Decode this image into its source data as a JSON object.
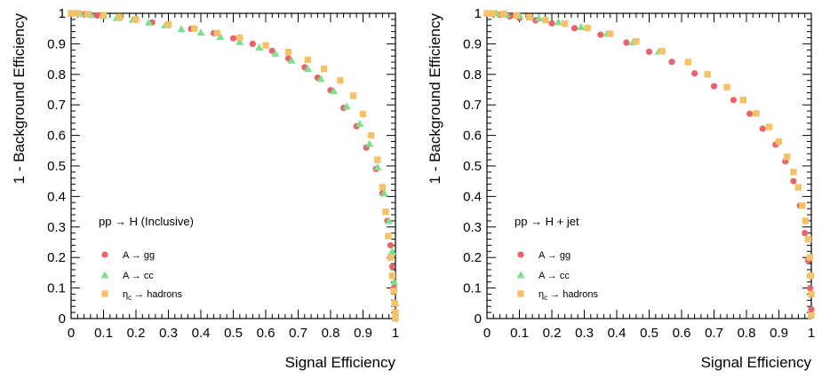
{
  "colors": {
    "gg": "#e8636b",
    "cc": "#7ee08e",
    "hadrons": "#f5c26a"
  },
  "chart_data": [
    {
      "type": "scatter",
      "title": "",
      "annotation": "pp → H (Inclusive)",
      "xlabel": "Signal Efficiency",
      "ylabel": "1 - Background Efficiency",
      "xlim": [
        0,
        1
      ],
      "ylim": [
        0,
        1
      ],
      "xticks": [
        "0",
        "0.1",
        "0.2",
        "0.3",
        "0.4",
        "0.5",
        "0.6",
        "0.7",
        "0.8",
        "0.9",
        "1"
      ],
      "yticks": [
        "0",
        "0.1",
        "0.2",
        "0.3",
        "0.4",
        "0.5",
        "0.6",
        "0.7",
        "0.8",
        "0.9",
        "1"
      ],
      "legend_position": "bottom-left",
      "series": [
        {
          "label_prefix": "A → ",
          "label_suffix": "gg",
          "marker": "circle",
          "color": "#e8636b",
          "x": [
            0.0,
            0.02,
            0.04,
            0.06,
            0.08,
            0.1,
            0.15,
            0.2,
            0.25,
            0.3,
            0.37,
            0.44,
            0.5,
            0.56,
            0.62,
            0.67,
            0.72,
            0.76,
            0.8,
            0.84,
            0.88,
            0.91,
            0.94,
            0.96,
            0.975,
            0.985,
            0.99,
            0.995,
            0.998,
            1.0
          ],
          "y": [
            1.0,
            0.999,
            0.997,
            0.995,
            0.993,
            0.99,
            0.985,
            0.978,
            0.97,
            0.961,
            0.949,
            0.935,
            0.918,
            0.9,
            0.877,
            0.852,
            0.823,
            0.789,
            0.748,
            0.69,
            0.63,
            0.56,
            0.49,
            0.41,
            0.32,
            0.24,
            0.17,
            0.1,
            0.05,
            0.02
          ]
        },
        {
          "label_prefix": "A → ",
          "label_suffix": "cc",
          "marker": "triangle",
          "color": "#7ee08e",
          "x": [
            0.0,
            0.03,
            0.06,
            0.1,
            0.14,
            0.19,
            0.24,
            0.29,
            0.34,
            0.4,
            0.46,
            0.52,
            0.58,
            0.63,
            0.68,
            0.73,
            0.77,
            0.81,
            0.85,
            0.89,
            0.92,
            0.945,
            0.965,
            0.98,
            0.99,
            0.996,
            1.0
          ],
          "y": [
            1.0,
            0.998,
            0.995,
            0.991,
            0.985,
            0.979,
            0.97,
            0.961,
            0.948,
            0.937,
            0.923,
            0.906,
            0.888,
            0.868,
            0.845,
            0.818,
            0.785,
            0.745,
            0.695,
            0.638,
            0.572,
            0.495,
            0.41,
            0.32,
            0.22,
            0.12,
            0.05
          ]
        },
        {
          "label_prefix": "η",
          "label_sub": "c",
          "label_suffix": " → hadrons",
          "marker": "square",
          "color": "#f5c26a",
          "x": [
            0.0,
            0.02,
            0.05,
            0.1,
            0.15,
            0.2,
            0.3,
            0.38,
            0.45,
            0.52,
            0.6,
            0.67,
            0.73,
            0.78,
            0.83,
            0.87,
            0.9,
            0.925,
            0.945,
            0.96,
            0.97,
            0.978,
            0.985,
            0.99,
            0.995,
            0.998,
            1.0,
            1.0
          ],
          "y": [
            1.0,
            1.0,
            0.998,
            0.994,
            0.988,
            0.98,
            0.964,
            0.95,
            0.935,
            0.92,
            0.895,
            0.873,
            0.848,
            0.818,
            0.78,
            0.73,
            0.67,
            0.6,
            0.52,
            0.43,
            0.35,
            0.27,
            0.2,
            0.14,
            0.09,
            0.05,
            0.02,
            0.0
          ]
        }
      ]
    },
    {
      "type": "scatter",
      "title": "",
      "annotation": "pp → H + jet",
      "xlabel": "Signal Efficiency",
      "ylabel": "1 - Background Efficiency",
      "xlim": [
        0,
        1
      ],
      "ylim": [
        0,
        1
      ],
      "xticks": [
        "0",
        "0.1",
        "0.2",
        "0.3",
        "0.4",
        "0.5",
        "0.6",
        "0.7",
        "0.8",
        "0.9",
        "1"
      ],
      "yticks": [
        "0",
        "0.1",
        "0.2",
        "0.3",
        "0.4",
        "0.5",
        "0.6",
        "0.7",
        "0.8",
        "0.9",
        "1"
      ],
      "legend_position": "bottom-left",
      "series": [
        {
          "label_prefix": "A → ",
          "label_suffix": "gg",
          "marker": "circle",
          "color": "#e8636b",
          "x": [
            0.0,
            0.02,
            0.04,
            0.07,
            0.1,
            0.15,
            0.2,
            0.27,
            0.35,
            0.43,
            0.5,
            0.57,
            0.64,
            0.7,
            0.76,
            0.81,
            0.85,
            0.89,
            0.92,
            0.945,
            0.965,
            0.98,
            0.99,
            0.996,
            1.0
          ],
          "y": [
            1.0,
            0.998,
            0.995,
            0.99,
            0.985,
            0.977,
            0.967,
            0.951,
            0.93,
            0.904,
            0.874,
            0.841,
            0.803,
            0.761,
            0.716,
            0.671,
            0.622,
            0.57,
            0.515,
            0.45,
            0.37,
            0.28,
            0.19,
            0.1,
            0.03
          ]
        },
        {
          "label_prefix": "A → ",
          "label_suffix": "cc",
          "marker": "triangle",
          "color": "#7ee08e",
          "x": [
            0.0,
            0.03,
            0.06,
            0.1,
            0.16,
            0.22,
            0.29,
            0.37,
            0.45,
            0.53
          ],
          "y": [
            1.0,
            0.999,
            0.996,
            0.992,
            0.984,
            0.971,
            0.955,
            0.933,
            0.905,
            0.875
          ]
        },
        {
          "label_prefix": "η",
          "label_sub": "c",
          "label_suffix": " → hadrons",
          "marker": "square",
          "color": "#f5c26a",
          "x": [
            0.0,
            0.02,
            0.05,
            0.09,
            0.13,
            0.18,
            0.24,
            0.31,
            0.38,
            0.46,
            0.54,
            0.62,
            0.68,
            0.74,
            0.79,
            0.83,
            0.87,
            0.9,
            0.925,
            0.945,
            0.96,
            0.972,
            0.982,
            0.99,
            0.995,
            0.998,
            1.0,
            1.0
          ],
          "y": [
            1.0,
            1.0,
            0.998,
            0.993,
            0.987,
            0.978,
            0.966,
            0.952,
            0.933,
            0.908,
            0.876,
            0.84,
            0.8,
            0.758,
            0.716,
            0.672,
            0.628,
            0.58,
            0.53,
            0.48,
            0.43,
            0.37,
            0.32,
            0.26,
            0.2,
            0.14,
            0.08,
            0.01
          ]
        }
      ]
    }
  ]
}
